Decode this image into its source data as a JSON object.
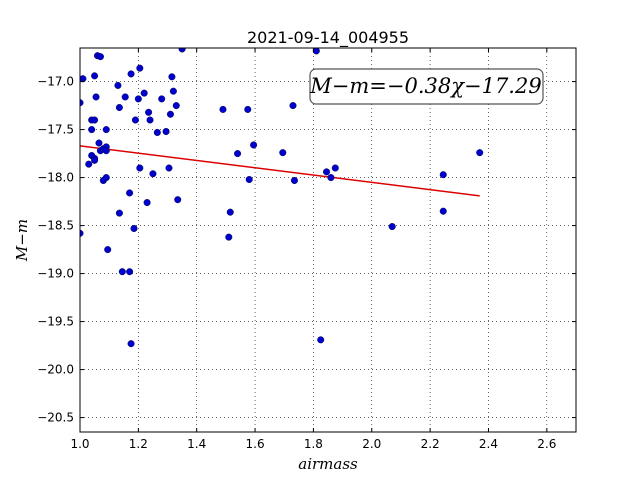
{
  "chart_data": {
    "type": "scatter",
    "title": "2021-09-14_004955",
    "xlabel": "airmass",
    "ylabel": "M−m",
    "xlim": [
      1.0,
      2.7
    ],
    "ylim": [
      -20.65,
      -16.65
    ],
    "y_inverted": true,
    "grid": true,
    "grid_style": "dotted",
    "x_ticks": [
      1.0,
      1.2,
      1.4,
      1.6,
      1.8,
      2.0,
      2.2,
      2.4,
      2.6
    ],
    "x_tick_labels": [
      "1.0",
      "1.2",
      "1.4",
      "1.6",
      "1.8",
      "2.0",
      "2.2",
      "2.4",
      "2.6"
    ],
    "y_ticks": [
      -17.0,
      -17.5,
      -18.0,
      -18.5,
      -19.0,
      -19.5,
      -20.0,
      -20.5
    ],
    "y_tick_labels": [
      "−17.0",
      "−17.5",
      "−18.0",
      "−18.5",
      "−19.0",
      "−19.5",
      "−20.0",
      "−20.5"
    ],
    "annotation": "M−m=−0.38χ−17.29",
    "annotation_placement": "top-right",
    "point_color": "#0000cc",
    "fit_color": "#dd0000",
    "fit": {
      "slope": -0.38,
      "intercept": -17.29,
      "x_range": [
        1.0,
        2.37
      ]
    },
    "points": [
      {
        "x": 1.0,
        "y": -17.22
      },
      {
        "x": 1.0,
        "y": -18.58
      },
      {
        "x": 1.01,
        "y": -16.97
      },
      {
        "x": 1.03,
        "y": -17.86
      },
      {
        "x": 1.04,
        "y": -17.4
      },
      {
        "x": 1.04,
        "y": -17.5
      },
      {
        "x": 1.04,
        "y": -17.77
      },
      {
        "x": 1.05,
        "y": -16.94
      },
      {
        "x": 1.05,
        "y": -17.4
      },
      {
        "x": 1.05,
        "y": -17.8
      },
      {
        "x": 1.05,
        "y": -17.82
      },
      {
        "x": 1.055,
        "y": -17.16
      },
      {
        "x": 1.06,
        "y": -16.73
      },
      {
        "x": 1.065,
        "y": -17.64
      },
      {
        "x": 1.07,
        "y": -16.74
      },
      {
        "x": 1.07,
        "y": -17.72
      },
      {
        "x": 1.08,
        "y": -17.7
      },
      {
        "x": 1.08,
        "y": -18.03
      },
      {
        "x": 1.09,
        "y": -17.5
      },
      {
        "x": 1.09,
        "y": -17.68
      },
      {
        "x": 1.09,
        "y": -17.72
      },
      {
        "x": 1.09,
        "y": -18.0
      },
      {
        "x": 1.095,
        "y": -18.75
      },
      {
        "x": 1.13,
        "y": -17.04
      },
      {
        "x": 1.135,
        "y": -17.27
      },
      {
        "x": 1.135,
        "y": -18.37
      },
      {
        "x": 1.145,
        "y": -18.98
      },
      {
        "x": 1.155,
        "y": -17.16
      },
      {
        "x": 1.17,
        "y": -18.16
      },
      {
        "x": 1.17,
        "y": -18.98
      },
      {
        "x": 1.175,
        "y": -16.92
      },
      {
        "x": 1.175,
        "y": -19.73
      },
      {
        "x": 1.185,
        "y": -18.53
      },
      {
        "x": 1.19,
        "y": -17.4
      },
      {
        "x": 1.2,
        "y": -17.18
      },
      {
        "x": 1.205,
        "y": -16.86
      },
      {
        "x": 1.205,
        "y": -17.9
      },
      {
        "x": 1.22,
        "y": -17.12
      },
      {
        "x": 1.23,
        "y": -18.26
      },
      {
        "x": 1.235,
        "y": -17.32
      },
      {
        "x": 1.24,
        "y": -17.4
      },
      {
        "x": 1.25,
        "y": -17.96
      },
      {
        "x": 1.265,
        "y": -17.53
      },
      {
        "x": 1.28,
        "y": -17.18
      },
      {
        "x": 1.295,
        "y": -17.52
      },
      {
        "x": 1.305,
        "y": -17.9
      },
      {
        "x": 1.31,
        "y": -17.34
      },
      {
        "x": 1.315,
        "y": -16.95
      },
      {
        "x": 1.32,
        "y": -17.1
      },
      {
        "x": 1.33,
        "y": -17.25
      },
      {
        "x": 1.335,
        "y": -18.23
      },
      {
        "x": 1.35,
        "y": -16.66
      },
      {
        "x": 1.49,
        "y": -17.29
      },
      {
        "x": 1.51,
        "y": -18.62
      },
      {
        "x": 1.515,
        "y": -18.36
      },
      {
        "x": 1.54,
        "y": -17.75
      },
      {
        "x": 1.575,
        "y": -17.29
      },
      {
        "x": 1.58,
        "y": -18.02
      },
      {
        "x": 1.595,
        "y": -17.66
      },
      {
        "x": 1.695,
        "y": -17.74
      },
      {
        "x": 1.73,
        "y": -17.25
      },
      {
        "x": 1.735,
        "y": -18.03
      },
      {
        "x": 1.81,
        "y": -16.68
      },
      {
        "x": 1.825,
        "y": -19.69
      },
      {
        "x": 1.845,
        "y": -17.94
      },
      {
        "x": 1.86,
        "y": -18.0
      },
      {
        "x": 1.875,
        "y": -17.9
      },
      {
        "x": 2.07,
        "y": -18.51
      },
      {
        "x": 2.245,
        "y": -17.97
      },
      {
        "x": 2.245,
        "y": -18.35
      },
      {
        "x": 2.37,
        "y": -17.74
      }
    ]
  }
}
